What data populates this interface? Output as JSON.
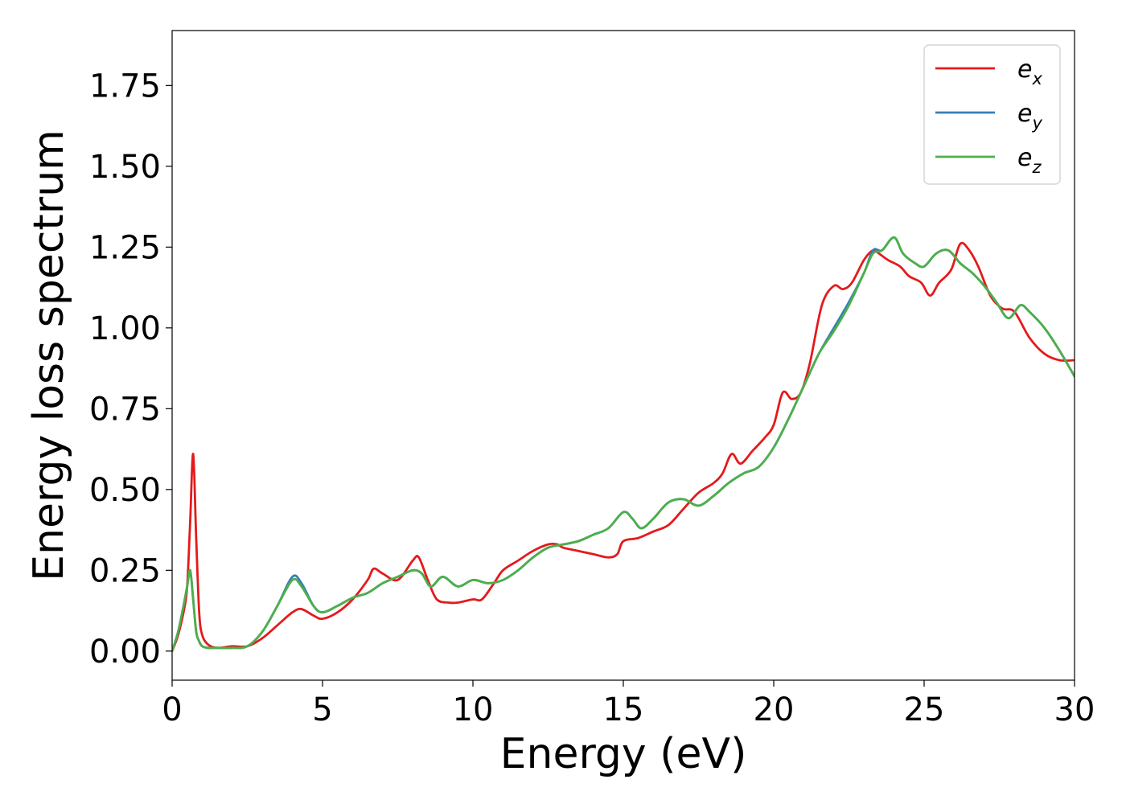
{
  "chart_data": {
    "type": "line",
    "title": "",
    "xlabel": "Energy (eV)",
    "ylabel": "Energy loss spectrum",
    "xlim": [
      0,
      30
    ],
    "ylim": [
      -0.09,
      1.92
    ],
    "xticks": [
      0,
      5,
      10,
      15,
      20,
      25,
      30
    ],
    "xtick_labels": [
      "0",
      "5",
      "10",
      "15",
      "20",
      "25",
      "30"
    ],
    "yticks": [
      0.0,
      0.25,
      0.5,
      0.75,
      1.0,
      1.25,
      1.5,
      1.75
    ],
    "ytick_labels": [
      "0.00",
      "0.25",
      "0.50",
      "0.75",
      "1.00",
      "1.25",
      "1.50",
      "1.75"
    ],
    "grid": false,
    "legend_position": "top-right",
    "series": [
      {
        "name": "e",
        "subscript": "x",
        "color": "#e41a1c",
        "x": [
          0,
          0.2,
          0.4,
          0.5,
          0.6,
          0.7,
          0.8,
          0.9,
          1.0,
          1.2,
          1.5,
          2.0,
          2.5,
          3.0,
          3.5,
          4.0,
          4.3,
          4.7,
          5.0,
          5.5,
          6.0,
          6.5,
          6.7,
          7.0,
          7.5,
          8.0,
          8.2,
          8.5,
          8.8,
          9.2,
          9.5,
          10.0,
          10.3,
          10.7,
          11.0,
          11.5,
          12.0,
          12.5,
          12.8,
          13.0,
          13.5,
          14.0,
          14.5,
          14.8,
          15.0,
          15.5,
          16.0,
          16.5,
          17.0,
          17.5,
          18.0,
          18.3,
          18.6,
          18.9,
          19.3,
          19.7,
          20.0,
          20.3,
          20.6,
          20.9,
          21.2,
          21.6,
          22.0,
          22.3,
          22.6,
          23.0,
          23.3,
          23.5,
          23.8,
          24.2,
          24.5,
          24.9,
          25.2,
          25.5,
          25.9,
          26.2,
          26.5,
          26.8,
          27.2,
          27.6,
          28.0,
          28.5,
          29.0,
          29.5,
          30.0
        ],
        "y": [
          0.0,
          0.05,
          0.13,
          0.2,
          0.4,
          0.61,
          0.35,
          0.12,
          0.05,
          0.02,
          0.01,
          0.015,
          0.015,
          0.04,
          0.08,
          0.12,
          0.13,
          0.11,
          0.1,
          0.12,
          0.16,
          0.22,
          0.255,
          0.24,
          0.22,
          0.28,
          0.29,
          0.22,
          0.16,
          0.15,
          0.15,
          0.16,
          0.16,
          0.21,
          0.25,
          0.28,
          0.31,
          0.33,
          0.33,
          0.32,
          0.31,
          0.3,
          0.29,
          0.3,
          0.34,
          0.35,
          0.37,
          0.39,
          0.44,
          0.49,
          0.52,
          0.55,
          0.61,
          0.58,
          0.62,
          0.66,
          0.7,
          0.8,
          0.78,
          0.8,
          0.89,
          1.07,
          1.13,
          1.12,
          1.14,
          1.21,
          1.24,
          1.23,
          1.21,
          1.19,
          1.16,
          1.14,
          1.1,
          1.14,
          1.18,
          1.26,
          1.24,
          1.19,
          1.1,
          1.06,
          1.05,
          0.97,
          0.92,
          0.9,
          0.9
        ]
      },
      {
        "name": "e",
        "subscript": "y",
        "color": "#377eb8",
        "x": [
          0,
          0.2,
          0.4,
          0.5,
          0.6,
          0.7,
          0.8,
          0.9,
          1.0,
          1.2,
          1.5,
          2.0,
          2.5,
          3.0,
          3.5,
          4.0,
          4.3,
          4.7,
          5.0,
          5.5,
          6.0,
          6.5,
          7.0,
          7.5,
          8.0,
          8.3,
          8.6,
          9.0,
          9.5,
          10.0,
          10.5,
          11.0,
          11.5,
          12.0,
          12.5,
          13.0,
          13.5,
          14.0,
          14.5,
          15.0,
          15.3,
          15.6,
          16.0,
          16.5,
          17.0,
          17.5,
          18.0,
          18.5,
          19.0,
          19.5,
          20.0,
          20.5,
          21.0,
          21.5,
          22.0,
          22.5,
          23.0,
          23.3,
          23.6,
          24.0,
          24.3,
          24.7,
          25.0,
          25.4,
          25.8,
          26.2,
          26.6,
          27.0,
          27.4,
          27.8,
          28.2,
          28.5,
          29.0,
          29.5,
          30.0
        ],
        "y": [
          0.0,
          0.06,
          0.15,
          0.2,
          0.25,
          0.16,
          0.06,
          0.03,
          0.015,
          0.01,
          0.01,
          0.01,
          0.015,
          0.06,
          0.14,
          0.23,
          0.21,
          0.14,
          0.12,
          0.14,
          0.165,
          0.18,
          0.21,
          0.23,
          0.25,
          0.24,
          0.2,
          0.23,
          0.2,
          0.22,
          0.21,
          0.22,
          0.25,
          0.29,
          0.32,
          0.33,
          0.34,
          0.36,
          0.38,
          0.43,
          0.41,
          0.38,
          0.41,
          0.46,
          0.47,
          0.45,
          0.48,
          0.52,
          0.55,
          0.57,
          0.63,
          0.72,
          0.82,
          0.92,
          1.0,
          1.08,
          1.17,
          1.24,
          1.24,
          1.28,
          1.23,
          1.2,
          1.19,
          1.23,
          1.24,
          1.2,
          1.17,
          1.13,
          1.08,
          1.03,
          1.07,
          1.05,
          1.0,
          0.93,
          0.85
        ]
      },
      {
        "name": "e",
        "subscript": "z",
        "color": "#4daf4a",
        "x": [
          0,
          0.2,
          0.4,
          0.5,
          0.6,
          0.7,
          0.8,
          0.9,
          1.0,
          1.2,
          1.5,
          2.0,
          2.5,
          3.0,
          3.5,
          4.0,
          4.3,
          4.7,
          5.0,
          5.5,
          6.0,
          6.5,
          7.0,
          7.5,
          8.0,
          8.3,
          8.6,
          9.0,
          9.5,
          10.0,
          10.5,
          11.0,
          11.5,
          12.0,
          12.5,
          13.0,
          13.5,
          14.0,
          14.5,
          15.0,
          15.3,
          15.6,
          16.0,
          16.5,
          17.0,
          17.5,
          18.0,
          18.5,
          19.0,
          19.5,
          20.0,
          20.5,
          21.0,
          21.5,
          22.0,
          22.5,
          23.0,
          23.3,
          23.6,
          24.0,
          24.3,
          24.7,
          25.0,
          25.4,
          25.8,
          26.2,
          26.6,
          27.0,
          27.4,
          27.8,
          28.2,
          28.5,
          29.0,
          29.5,
          30.0
        ],
        "y": [
          0.0,
          0.06,
          0.15,
          0.2,
          0.25,
          0.16,
          0.06,
          0.03,
          0.015,
          0.01,
          0.01,
          0.01,
          0.015,
          0.06,
          0.14,
          0.22,
          0.2,
          0.14,
          0.12,
          0.14,
          0.165,
          0.18,
          0.21,
          0.23,
          0.25,
          0.24,
          0.2,
          0.23,
          0.2,
          0.22,
          0.21,
          0.22,
          0.25,
          0.29,
          0.32,
          0.33,
          0.34,
          0.36,
          0.38,
          0.43,
          0.41,
          0.38,
          0.41,
          0.46,
          0.47,
          0.45,
          0.48,
          0.52,
          0.55,
          0.57,
          0.63,
          0.72,
          0.82,
          0.92,
          0.99,
          1.07,
          1.17,
          1.23,
          1.24,
          1.28,
          1.23,
          1.2,
          1.19,
          1.23,
          1.24,
          1.2,
          1.17,
          1.13,
          1.08,
          1.03,
          1.07,
          1.05,
          1.0,
          0.93,
          0.85
        ]
      }
    ]
  }
}
